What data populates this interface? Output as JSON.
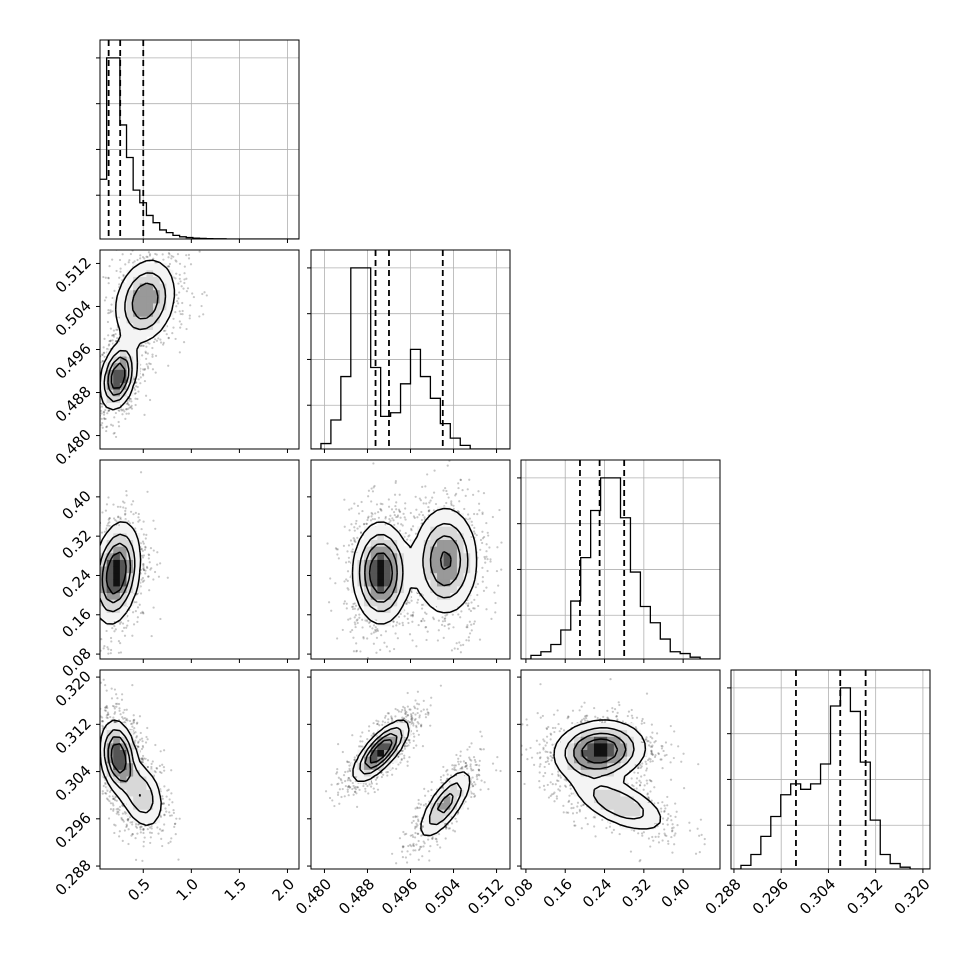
{
  "chart_data": {
    "type": "corner",
    "n_params": 4,
    "grid": true,
    "colors": {
      "line": "#000000",
      "grid": "#b0b0b0",
      "scatter": "#000000"
    },
    "axes": [
      {
        "range": [
          0.05,
          2.12
        ],
        "ticks": [
          0.5,
          1.0,
          1.5,
          2.0
        ],
        "tick_labels": [
          "0.5",
          "1.0",
          "1.5",
          "2.0"
        ]
      },
      {
        "range": [
          0.4775,
          0.5145
        ],
        "ticks": [
          0.48,
          0.488,
          0.496,
          0.504,
          0.512
        ],
        "tick_labels": [
          "0.480",
          "0.488",
          "0.496",
          "0.504",
          "0.512"
        ]
      },
      {
        "range": [
          0.07,
          0.475
        ],
        "ticks": [
          0.08,
          0.16,
          0.24,
          0.32,
          0.4
        ],
        "tick_labels": [
          "0.08",
          "0.16",
          "0.24",
          "0.32",
          "0.40"
        ]
      },
      {
        "range": [
          0.2875,
          0.3212
        ],
        "ticks": [
          0.288,
          0.296,
          0.304,
          0.312,
          0.32
        ],
        "tick_labels": [
          "0.288",
          "0.296",
          "0.304",
          "0.312",
          "0.320"
        ]
      }
    ],
    "quantiles": [
      [
        0.14,
        0.26,
        0.5
      ],
      [
        0.4895,
        0.492,
        0.502
      ],
      [
        0.19,
        0.23,
        0.28
      ],
      [
        0.2985,
        0.306,
        0.3103
      ]
    ],
    "histograms": [
      {
        "edges": [
          0.05,
          2.12
        ],
        "counts": [
          0.33,
          1.0,
          1.0,
          0.63,
          0.45,
          0.27,
          0.2,
          0.13,
          0.09,
          0.05,
          0.035,
          0.02,
          0.012,
          0.008,
          0.005,
          0.003,
          0.002,
          0.001,
          0.001,
          0.0,
          0.0,
          0.0,
          0.0,
          0.0,
          0.0,
          0.0,
          0.0,
          0.0,
          0.0,
          0.0
        ]
      },
      {
        "edges": [
          0.4775,
          0.5145
        ],
        "counts": [
          0.0,
          0.03,
          0.16,
          0.4,
          1.0,
          1.0,
          0.45,
          0.18,
          0.2,
          0.36,
          0.55,
          0.4,
          0.28,
          0.14,
          0.06,
          0.02,
          0.0,
          0.0,
          0.0,
          0.0
        ]
      },
      {
        "edges": [
          0.07,
          0.475
        ],
        "counts": [
          0.0,
          0.02,
          0.04,
          0.08,
          0.16,
          0.32,
          0.56,
          0.82,
          1.0,
          1.0,
          0.78,
          0.48,
          0.29,
          0.2,
          0.11,
          0.04,
          0.03,
          0.01,
          0.0,
          0.0
        ]
      },
      {
        "edges": [
          0.2875,
          0.3212
        ],
        "counts": [
          0.0,
          0.02,
          0.08,
          0.18,
          0.29,
          0.41,
          0.47,
          0.44,
          0.47,
          0.58,
          0.9,
          1.0,
          0.87,
          0.59,
          0.27,
          0.08,
          0.03,
          0.01,
          0.0,
          0.0
        ]
      }
    ],
    "pairs": [
      {
        "row": 1,
        "col": 0,
        "peaks": [
          [
            0.24,
            0.491,
            0.09,
            0.003,
            0.3,
            1.0
          ],
          [
            0.52,
            0.505,
            0.16,
            0.004,
            0.2,
            0.7
          ]
        ]
      },
      {
        "row": 2,
        "col": 0,
        "peaks": [
          [
            0.22,
            0.245,
            0.12,
            0.05,
            0.25,
            1.0
          ]
        ]
      },
      {
        "row": 2,
        "col": 1,
        "peaks": [
          [
            0.4905,
            0.245,
            0.0025,
            0.05,
            0.0,
            1.0
          ],
          [
            0.5025,
            0.27,
            0.003,
            0.055,
            0.0,
            0.75
          ]
        ]
      },
      {
        "row": 3,
        "col": 0,
        "peaks": [
          [
            0.24,
            0.3065,
            0.09,
            0.003,
            -0.2,
            1.0
          ],
          [
            0.48,
            0.3,
            0.12,
            0.003,
            -0.3,
            0.5
          ]
        ]
      },
      {
        "row": 3,
        "col": 1,
        "peaks": [
          [
            0.4905,
            0.3075,
            0.0025,
            0.0025,
            0.75,
            1.0
          ],
          [
            0.5025,
            0.2985,
            0.0025,
            0.003,
            0.75,
            0.6
          ]
        ]
      },
      {
        "row": 3,
        "col": 2,
        "peaks": [
          [
            0.23,
            0.3075,
            0.045,
            0.0025,
            0.1,
            1.0
          ],
          [
            0.27,
            0.2985,
            0.05,
            0.0025,
            -0.6,
            0.5
          ]
        ]
      }
    ]
  }
}
